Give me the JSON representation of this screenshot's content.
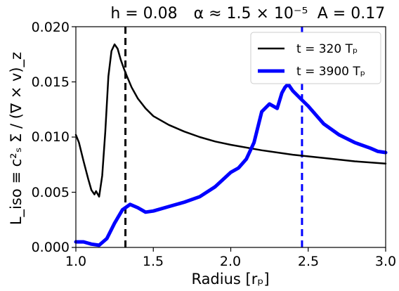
{
  "chart_data": {
    "type": "line",
    "title_parts": [
      "h = 0.08",
      "α ≈ 1.5 × 10⁻⁵",
      "A = 0.17"
    ],
    "xlabel": "Radius [rₚ]",
    "ylabel": "L_iso ≡ c²ₛ Σ / (∇ × v)_z",
    "xlim": [
      1.0,
      3.0
    ],
    "ylim": [
      0.0,
      0.02
    ],
    "x_ticks": [
      "1.0",
      "1.5",
      "2.0",
      "2.5",
      "3.0"
    ],
    "y_ticks": [
      "0.000",
      "0.005",
      "0.010",
      "0.015",
      "0.020"
    ],
    "grid": false,
    "legend_position": "top-right",
    "series": [
      {
        "name": "t = 320 Tₚ",
        "color": "#000000",
        "x": [
          1.0,
          1.02,
          1.05,
          1.08,
          1.1,
          1.12,
          1.13,
          1.15,
          1.17,
          1.19,
          1.21,
          1.23,
          1.25,
          1.27,
          1.29,
          1.31,
          1.33,
          1.36,
          1.4,
          1.45,
          1.5,
          1.6,
          1.7,
          1.8,
          1.9,
          2.0,
          2.2,
          2.4,
          2.6,
          2.8,
          3.0
        ],
        "values": [
          0.0102,
          0.0095,
          0.0078,
          0.0062,
          0.0052,
          0.0048,
          0.0051,
          0.0046,
          0.0065,
          0.0105,
          0.0155,
          0.0178,
          0.0184,
          0.018,
          0.017,
          0.0162,
          0.0155,
          0.0145,
          0.0135,
          0.0126,
          0.0119,
          0.0111,
          0.0105,
          0.01,
          0.0096,
          0.0093,
          0.0088,
          0.0084,
          0.0081,
          0.0078,
          0.0076
        ]
      },
      {
        "name": "t = 3900 Tₚ",
        "color": "#0000ff",
        "x": [
          1.0,
          1.05,
          1.1,
          1.15,
          1.2,
          1.25,
          1.3,
          1.35,
          1.4,
          1.45,
          1.5,
          1.6,
          1.7,
          1.8,
          1.9,
          2.0,
          2.05,
          2.1,
          2.15,
          2.2,
          2.25,
          2.3,
          2.33,
          2.35,
          2.37,
          2.4,
          2.45,
          2.5,
          2.55,
          2.6,
          2.7,
          2.8,
          2.9,
          2.95,
          3.0
        ],
        "values": [
          0.0005,
          0.0005,
          0.0003,
          0.0002,
          0.0008,
          0.0022,
          0.0034,
          0.0039,
          0.0036,
          0.0032,
          0.0033,
          0.0037,
          0.0041,
          0.0046,
          0.0055,
          0.0068,
          0.0072,
          0.008,
          0.0095,
          0.0123,
          0.013,
          0.0126,
          0.014,
          0.0145,
          0.0148,
          0.0142,
          0.0135,
          0.0128,
          0.012,
          0.0112,
          0.0102,
          0.0095,
          0.009,
          0.0087,
          0.0086
        ]
      }
    ],
    "vlines": [
      {
        "x": 1.32,
        "color": "#000000"
      },
      {
        "x": 2.46,
        "color": "#0000ff"
      }
    ]
  }
}
